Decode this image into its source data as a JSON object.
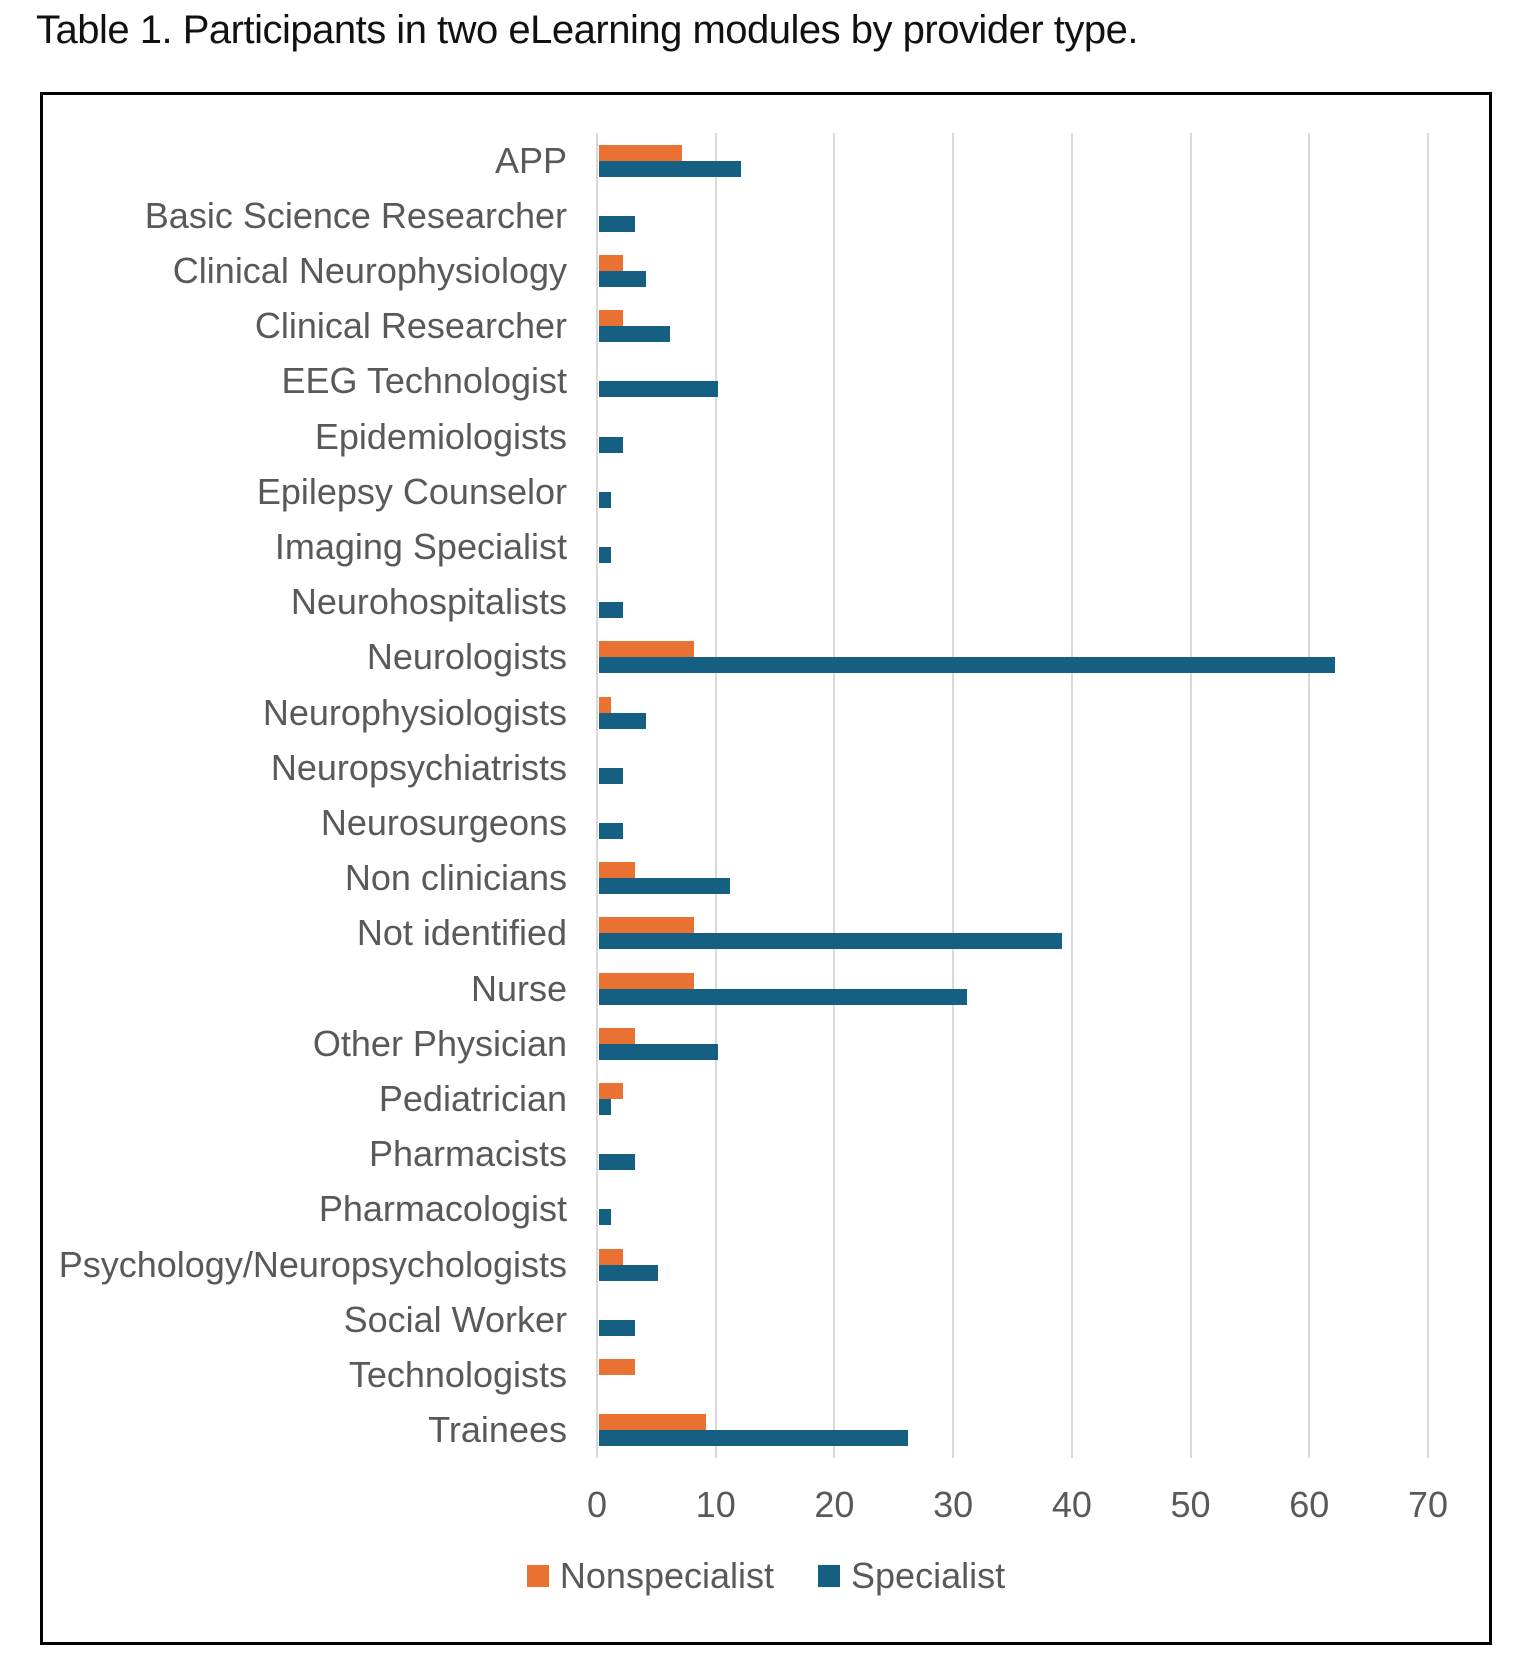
{
  "page": {
    "title": "Table 1. Participants in two eLearning modules by provider type."
  },
  "chart_data": {
    "type": "bar",
    "orientation": "horizontal",
    "categories": [
      "APP",
      "Basic Science Researcher",
      "Clinical Neurophysiology",
      "Clinical Researcher",
      "EEG Technologist",
      "Epidemiologists",
      "Epilepsy Counselor",
      "Imaging Specialist",
      "Neurohospitalists",
      "Neurologists",
      "Neurophysiologists",
      "Neuropsychiatrists",
      "Neurosurgeons",
      "Non clinicians",
      "Not identified",
      "Nurse",
      "Other Physician",
      "Pediatrician",
      "Pharmacists",
      "Pharmacologist",
      "Psychology/Neuropsychologists",
      "Social Worker",
      "Technologists",
      "Trainees"
    ],
    "series": [
      {
        "name": "Nonspecialist",
        "color": "#E97132",
        "values": [
          7,
          0,
          2,
          2,
          0,
          0,
          0,
          0,
          0,
          8,
          1,
          0,
          0,
          3,
          8,
          8,
          3,
          2,
          0,
          0,
          2,
          0,
          3,
          9
        ]
      },
      {
        "name": "Specialist",
        "color": "#156082",
        "values": [
          12,
          3,
          4,
          6,
          10,
          2,
          1,
          1,
          2,
          62,
          4,
          2,
          2,
          11,
          39,
          31,
          10,
          1,
          3,
          1,
          5,
          3,
          0,
          26
        ]
      }
    ],
    "xlim": [
      0,
      70
    ],
    "x_ticks": [
      0,
      10,
      20,
      30,
      40,
      50,
      60,
      70
    ],
    "grid": true,
    "legend_position": "bottom",
    "styles": {
      "grid_color": "#d9d9d9",
      "axis_text_color": "#595959",
      "border_color": "#000000"
    }
  }
}
